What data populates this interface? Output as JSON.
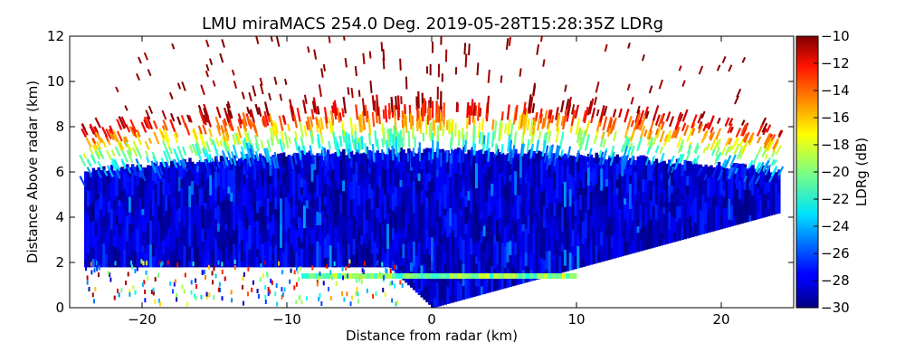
{
  "chart_data": {
    "type": "heatmap",
    "title": "LMU miraMACS 254.0 Deg. 2019-05-28T15:28:35Z  LDRg",
    "xlabel": "Distance from radar (km)",
    "ylabel": "Distance Above radar  (km)",
    "xlim": [
      -25,
      25
    ],
    "ylim": [
      0,
      12
    ],
    "x_ticks": [
      -20,
      -10,
      0,
      10,
      20
    ],
    "y_ticks": [
      0,
      2,
      4,
      6,
      8,
      10,
      12
    ],
    "colorbar": {
      "label": "LDRg (dB)",
      "range": [
        -30,
        -10
      ],
      "ticks": [
        -30,
        -28,
        -26,
        -24,
        -22,
        -20,
        -18,
        -16,
        -14,
        -12,
        -10
      ],
      "colormap": "jet"
    },
    "scan": {
      "azimuth_deg": 254.0,
      "time": "2019-05-28T15:28:35Z",
      "x_range_km": [
        -24,
        24
      ],
      "bright_band_height_km": 1.4,
      "echo_top_km": 8.5,
      "dense_cloud_layer_km": [
        1.8,
        6.2
      ],
      "left_lower_edge_km": 1.8,
      "right_lower_edge_km": 4.2
    }
  }
}
